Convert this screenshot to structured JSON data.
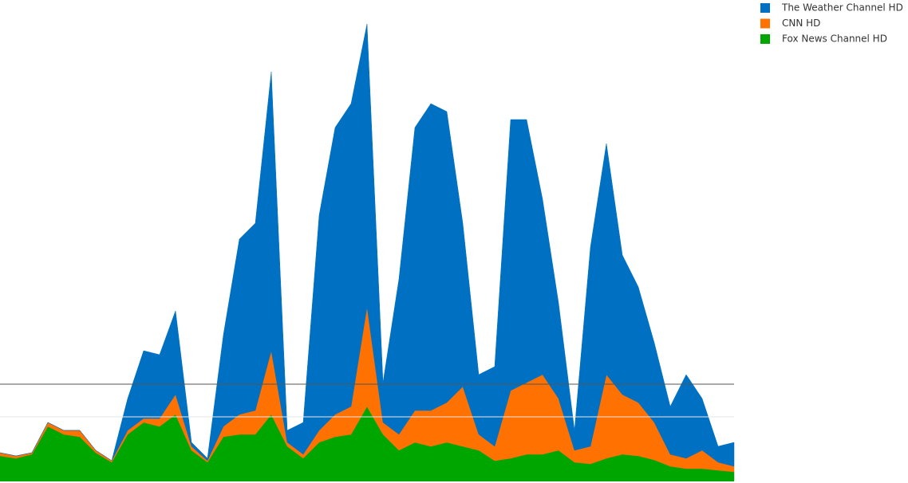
{
  "chart_data": {
    "type": "stacked-area",
    "x": [
      0,
      20,
      40,
      60,
      80,
      100,
      120,
      140,
      160,
      180,
      200,
      220,
      240,
      260,
      280,
      300,
      320,
      340,
      360,
      380,
      400,
      420,
      440,
      460,
      480,
      500,
      520,
      540,
      560,
      580,
      600,
      620,
      640,
      660,
      680,
      700,
      720,
      740,
      760,
      780,
      800,
      820,
      840,
      860,
      880,
      900,
      920
    ],
    "xlim": [
      0,
      920
    ],
    "ylim": [
      0,
      600
    ],
    "legend": "top-right",
    "series": [
      {
        "name": "The Weather Channel HD",
        "color": "#0071c2",
        "values": [
          0,
          0,
          0,
          0,
          0,
          0,
          0,
          0,
          40,
          85,
          80,
          105,
          5,
          3,
          115,
          220,
          235,
          350,
          15,
          40,
          270,
          360,
          380,
          355,
          50,
          195,
          355,
          385,
          365,
          205,
          75,
          100,
          340,
          330,
          220,
          120,
          25,
          250,
          290,
          175,
          145,
          100,
          60,
          105,
          65,
          20,
          30
        ]
      },
      {
        "name": "CNN HD",
        "color": "#ff7100",
        "values": [
          4,
          3,
          2,
          5,
          5,
          8,
          3,
          2,
          5,
          5,
          10,
          25,
          5,
          2,
          13,
          25,
          30,
          80,
          5,
          5,
          15,
          28,
          35,
          125,
          15,
          20,
          40,
          45,
          50,
          75,
          20,
          18,
          85,
          90,
          100,
          65,
          15,
          22,
          105,
          75,
          67,
          47,
          15,
          13,
          23,
          10,
          7
        ]
      },
      {
        "name": "Fox News Channel HD",
        "color": "#00a600",
        "values": [
          31,
          28,
          33,
          68,
          58,
          55,
          35,
          23,
          58,
          73,
          68,
          83,
          38,
          23,
          55,
          58,
          58,
          83,
          43,
          28,
          48,
          55,
          58,
          93,
          58,
          38,
          48,
          43,
          48,
          43,
          38,
          25,
          28,
          33,
          33,
          38,
          23,
          21,
          28,
          33,
          31,
          26,
          18,
          15,
          15,
          13,
          11
        ]
      }
    ]
  }
}
